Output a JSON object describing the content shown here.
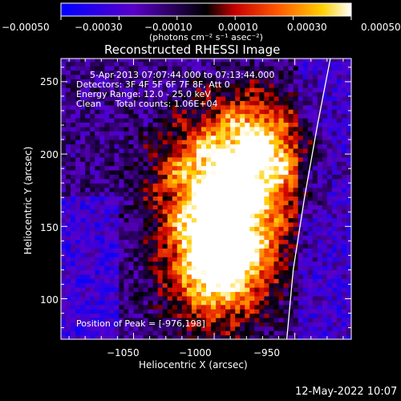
{
  "chart_data": {
    "type": "heatmap",
    "title": "Reconstructed RHESSI Image",
    "xlabel": "Heliocentric X (arcsec)",
    "ylabel": "Heliocentric Y (arcsec)",
    "xlim": [
      -1095,
      -915
    ],
    "ylim": [
      72,
      266
    ],
    "x_ticks": [
      "−1050",
      "−1000",
      "−950"
    ],
    "x_tick_values": [
      -1050,
      -1000,
      -950
    ],
    "y_ticks": [
      "100",
      "150",
      "200",
      "250"
    ],
    "y_tick_values": [
      100,
      150,
      200,
      250
    ],
    "colorbar": {
      "range": [
        -0.0005,
        0.0005
      ],
      "tick_labels": [
        "−0.00050",
        "−0.00030",
        "−0.00010",
        "0.00010",
        "0.00030",
        "0.00050"
      ],
      "tick_values": [
        -0.0005,
        -0.0003,
        -0.0001,
        0.0001,
        0.0003,
        0.0005
      ],
      "units_label": "(photons cm⁻² s⁻¹ asec⁻²)"
    },
    "annotations": {
      "time_range": "5-Apr-2013 07:07:44.000 to 07:13:44.000",
      "detectors": "Detectors: 3F 4F 5F 6F 7F 8F, Att 0",
      "energy": "Energy Range: 12.0 - 25.0 keV",
      "method": "Clean     Total counts: 1.06E+04",
      "peak": "Position of Peak = [-976,198]"
    },
    "peak_position": [
      -976,
      198
    ],
    "sources": [
      {
        "x": -976,
        "y": 198,
        "intensity": 0.0005
      },
      {
        "x": -1000,
        "y": 120,
        "intensity": 0.00045
      },
      {
        "x": -1010,
        "y": 180,
        "intensity": 0.0003
      },
      {
        "x": -990,
        "y": 145,
        "intensity": 0.0003
      }
    ],
    "limb_curve": {
      "x": [
        -955,
        -951,
        -944,
        -936,
        -928
      ],
      "y": [
        72,
        120,
        170,
        220,
        266
      ]
    },
    "colors": {
      "negative": "#0000ff",
      "zero": "#000000",
      "positive_high": "#ffffff",
      "limb": "#ffffff"
    }
  },
  "footer": {
    "date": "12-May-2022 10:07"
  }
}
